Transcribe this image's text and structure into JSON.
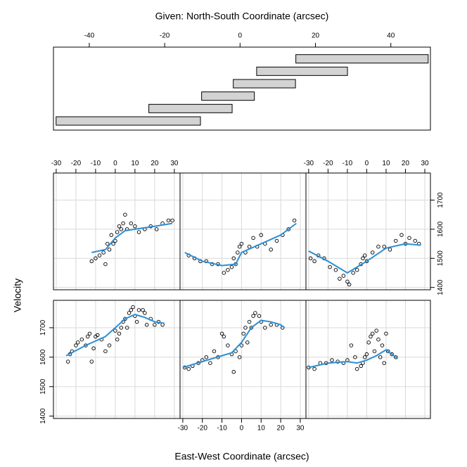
{
  "chart_data": {
    "type": "coplot",
    "given": {
      "title": "Given: North-South Coordinate (arcsec)",
      "xlim": [
        -49.5,
        50.5
      ],
      "xticks": [
        -40,
        -20,
        0,
        20,
        40
      ],
      "intervals": [
        [
          -48.8,
          -10.5
        ],
        [
          -24.2,
          -2.1
        ],
        [
          -10.2,
          3.8
        ],
        [
          -1.8,
          14.7
        ],
        [
          4.4,
          28.5
        ],
        [
          14.8,
          49.9
        ]
      ],
      "color": "#d3d3d3"
    },
    "x_label": "East-West Coordinate (arcsec)",
    "y_label": "Velocity",
    "xlim": [
      -31.4,
      32.9
    ],
    "xticks": [
      -30,
      -20,
      -10,
      0,
      10,
      20,
      30
    ],
    "ylim": [
      1392,
      1793
    ],
    "yticks": [
      1400,
      1500,
      1600,
      1700
    ],
    "grid": true,
    "point_color": "#000000",
    "fit_color": "#2b8fd6",
    "panels": [
      {
        "x": [
          -24,
          -23,
          -22,
          -20,
          -19,
          -17,
          -15,
          -14,
          -13,
          -12,
          -11,
          -10,
          -9,
          -7,
          -5,
          -3,
          0,
          1,
          2,
          3,
          4,
          5,
          6,
          7,
          8,
          9,
          10,
          11,
          12,
          14,
          15,
          16,
          18,
          20,
          22,
          24
        ],
        "y": [
          1585,
          1610,
          1620,
          1640,
          1650,
          1660,
          1640,
          1670,
          1680,
          1585,
          1630,
          1670,
          1675,
          1660,
          1620,
          1640,
          1690,
          1660,
          1680,
          1700,
          1720,
          1730,
          1700,
          1750,
          1760,
          1770,
          1740,
          1720,
          1760,
          1760,
          1750,
          1710,
          1730,
          1710,
          1720,
          1710
        ],
        "fit_x": [
          -25,
          -15,
          -5,
          0,
          5,
          10,
          15,
          20,
          25
        ],
        "fit_y": [
          1605,
          1640,
          1670,
          1700,
          1730,
          1745,
          1735,
          1720,
          1715
        ]
      },
      {
        "x": [
          -29,
          -27,
          -25,
          -22,
          -20,
          -18,
          -16,
          -14,
          -12,
          -10,
          -9,
          -7,
          -5,
          -4,
          -3,
          -1,
          0,
          1,
          2,
          3,
          4,
          5,
          6,
          7,
          9,
          10,
          12,
          15,
          18,
          21
        ],
        "y": [
          1565,
          1560,
          1570,
          1580,
          1590,
          1600,
          1580,
          1620,
          1600,
          1680,
          1670,
          1640,
          1610,
          1550,
          1620,
          1600,
          1640,
          1680,
          1700,
          1650,
          1720,
          1700,
          1740,
          1750,
          1740,
          1720,
          1700,
          1710,
          1710,
          1700
        ],
        "fit_x": [
          -30,
          -20,
          -10,
          -5,
          0,
          5,
          10,
          15,
          20,
          22
        ],
        "fit_y": [
          1565,
          1585,
          1605,
          1615,
          1650,
          1700,
          1725,
          1720,
          1710,
          1700
        ]
      },
      {
        "x": [
          -30,
          -27,
          -24,
          -21,
          -18,
          -15,
          -12,
          -10,
          -8,
          -6,
          -5,
          -3,
          -2,
          -1,
          0,
          1,
          2,
          3,
          4,
          5,
          6,
          7,
          8,
          9,
          10,
          11,
          13,
          15
        ],
        "y": [
          1565,
          1560,
          1580,
          1580,
          1590,
          1585,
          1580,
          1590,
          1640,
          1600,
          1560,
          1570,
          1580,
          1600,
          1610,
          1650,
          1670,
          1680,
          1620,
          1690,
          1660,
          1600,
          1640,
          1580,
          1680,
          1620,
          1610,
          1600
        ],
        "fit_x": [
          -30,
          -20,
          -10,
          -5,
          0,
          5,
          10,
          13,
          16
        ],
        "fit_y": [
          1565,
          1580,
          1585,
          1580,
          1590,
          1605,
          1625,
          1610,
          1595
        ]
      },
      {
        "x": [
          -12,
          -10,
          -8,
          -6,
          -5,
          -4,
          -3,
          -2,
          -1,
          0,
          1,
          2,
          3,
          4,
          5,
          6,
          8,
          10,
          12,
          15,
          18,
          21,
          24,
          27,
          29
        ],
        "y": [
          1490,
          1500,
          1510,
          1520,
          1480,
          1550,
          1530,
          1580,
          1550,
          1560,
          1590,
          1610,
          1600,
          1620,
          1650,
          1600,
          1620,
          1610,
          1590,
          1600,
          1610,
          1600,
          1620,
          1630,
          1630
        ],
        "fit_x": [
          -12,
          -5,
          0,
          5,
          10,
          20,
          29
        ],
        "fit_y": [
          1520,
          1530,
          1570,
          1595,
          1600,
          1610,
          1620
        ]
      },
      {
        "x": [
          -27,
          -24,
          -21,
          -18,
          -15,
          -12,
          -9,
          -7,
          -5,
          -4,
          -3,
          -2,
          -1,
          0,
          2,
          4,
          6,
          8,
          10,
          12,
          15,
          18,
          21,
          24,
          27
        ],
        "y": [
          1510,
          1500,
          1490,
          1490,
          1480,
          1480,
          1450,
          1460,
          1470,
          1500,
          1480,
          1520,
          1540,
          1550,
          1520,
          1540,
          1570,
          1540,
          1580,
          1550,
          1530,
          1560,
          1580,
          1600,
          1630
        ],
        "fit_x": [
          -29,
          -20,
          -10,
          -3,
          0,
          10,
          20,
          28
        ],
        "fit_y": [
          1520,
          1490,
          1475,
          1480,
          1520,
          1550,
          1580,
          1620
        ]
      },
      {
        "x": [
          -29,
          -27,
          -25,
          -22,
          -19,
          -16,
          -14,
          -12,
          -10,
          -9,
          -7,
          -5,
          -3,
          -2,
          -1,
          0,
          3,
          6,
          9,
          12,
          15,
          18,
          20,
          22,
          25,
          27
        ],
        "y": [
          1500,
          1490,
          1510,
          1500,
          1470,
          1460,
          1430,
          1440,
          1420,
          1410,
          1450,
          1460,
          1480,
          1500,
          1510,
          1490,
          1520,
          1540,
          1540,
          1530,
          1560,
          1580,
          1550,
          1570,
          1560,
          1550
        ],
        "fit_x": [
          -30,
          -20,
          -10,
          -5,
          0,
          10,
          20,
          28
        ],
        "fit_y": [
          1525,
          1490,
          1450,
          1470,
          1490,
          1535,
          1550,
          1545
        ]
      }
    ]
  }
}
